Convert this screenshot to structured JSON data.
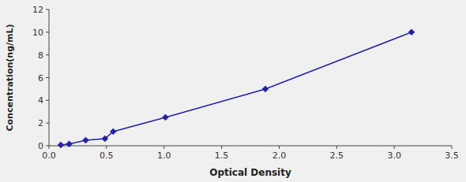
{
  "chart_data": {
    "type": "line",
    "x": [
      0.103,
      0.176,
      0.319,
      0.486,
      0.558,
      1.012,
      1.88,
      3.15
    ],
    "values": [
      0.078,
      0.156,
      0.488,
      0.625,
      1.25,
      2.5,
      5.0,
      10.0
    ],
    "color": "#2222aa",
    "marker": "diamond",
    "xlabel": "Optical Density",
    "ylabel": "Concentration(ng/mL)",
    "xlim": [
      0,
      3.5
    ],
    "ylim": [
      0,
      12
    ],
    "xticks": [
      {
        "value": 0,
        "label": "0.0"
      },
      0.5,
      {
        "value": 1.0,
        "label": "1.0"
      },
      1.5,
      {
        "value": 2.0,
        "label": "2.0"
      },
      2.5,
      {
        "value": 3.0,
        "label": "3.0"
      },
      3.5
    ],
    "yticks": [
      0,
      2,
      4,
      6,
      8,
      10,
      12
    ],
    "grid": false
  }
}
